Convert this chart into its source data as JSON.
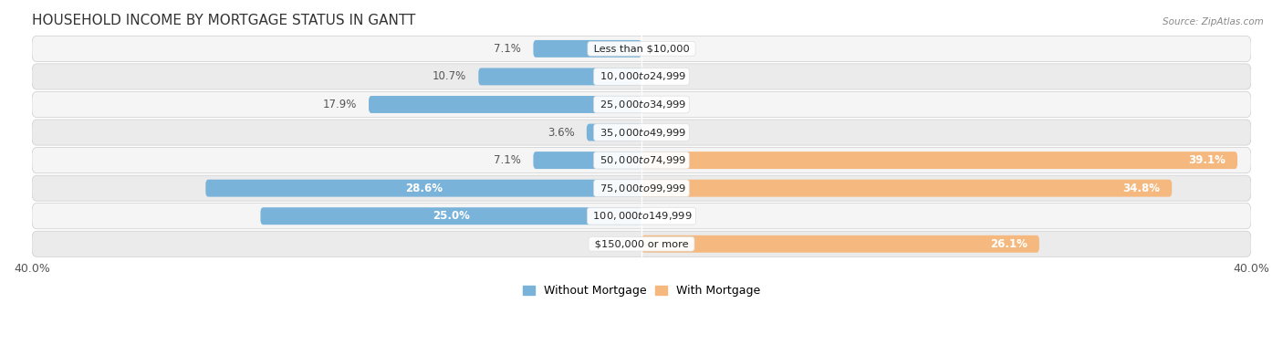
{
  "title": "HOUSEHOLD INCOME BY MORTGAGE STATUS IN GANTT",
  "source": "Source: ZipAtlas.com",
  "categories": [
    "Less than $10,000",
    "$10,000 to $24,999",
    "$25,000 to $34,999",
    "$35,000 to $49,999",
    "$50,000 to $74,999",
    "$75,000 to $99,999",
    "$100,000 to $149,999",
    "$150,000 or more"
  ],
  "without_mortgage": [
    7.1,
    10.7,
    17.9,
    3.6,
    7.1,
    28.6,
    25.0,
    0.0
  ],
  "with_mortgage": [
    0.0,
    0.0,
    0.0,
    0.0,
    39.1,
    34.8,
    0.0,
    26.1
  ],
  "color_without": "#7ab3d9",
  "color_with": "#f5b97f",
  "axis_limit": 40.0,
  "title_fontsize": 11,
  "label_fontsize": 8.5,
  "tick_fontsize": 9,
  "legend_fontsize": 9,
  "category_fontsize": 8.2,
  "bar_height": 0.62,
  "row_colors": [
    "#f5f5f5",
    "#ebebeb"
  ]
}
